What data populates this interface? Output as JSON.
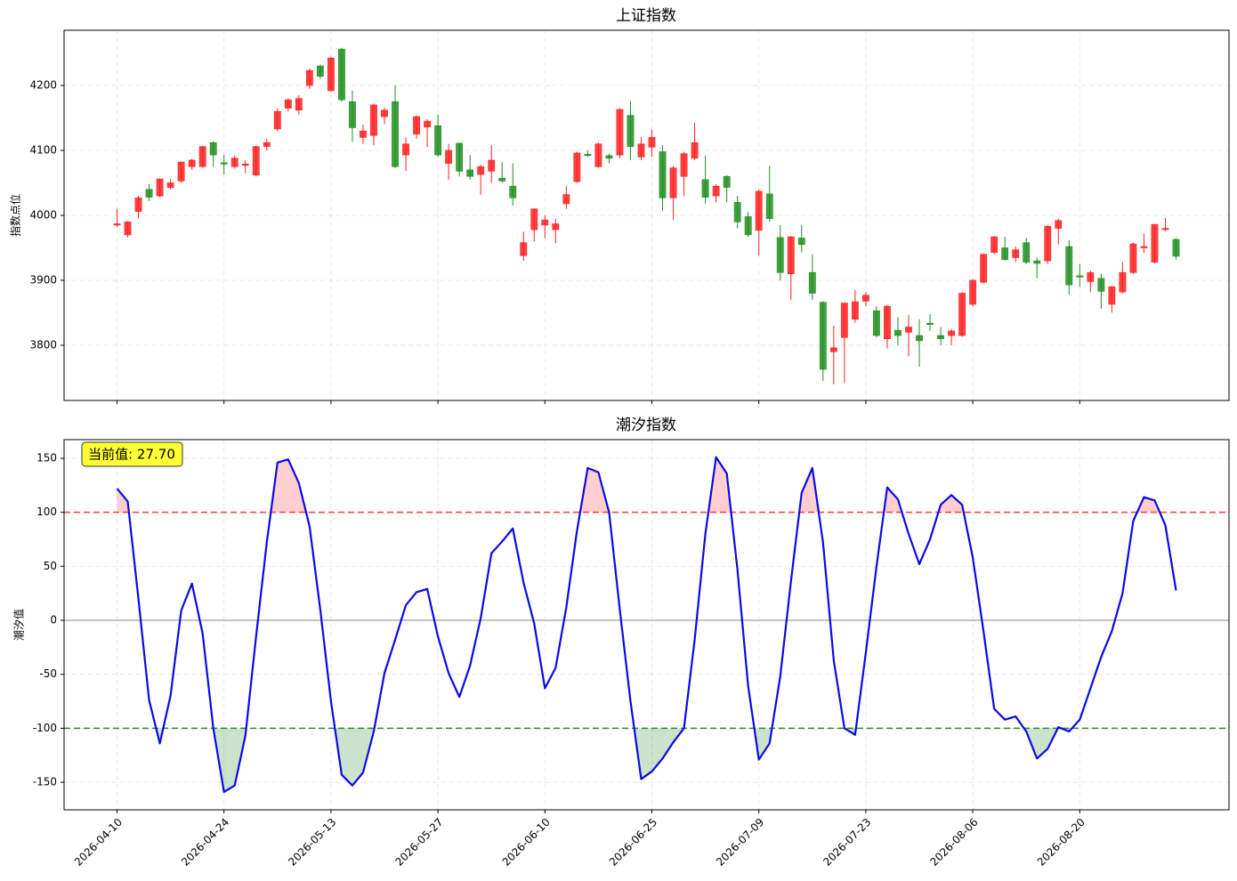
{
  "chart_data": [
    {
      "type": "candlestick",
      "title": "上证指数",
      "y_label": "指数点位",
      "up_color": "#ff2020",
      "down_color": "#1f8f1f",
      "xlim": [
        -4.95,
        103.95
      ],
      "xticks": [
        0,
        10,
        20,
        30,
        40,
        50,
        60,
        70,
        80,
        90
      ],
      "ylim": [
        3715,
        4285
      ],
      "yticks": [
        3800,
        3900,
        4000,
        4100,
        4200
      ],
      "grid": true,
      "open": [
        3985,
        3970,
        4006,
        4040,
        4030,
        4043,
        4053,
        4075,
        4075,
        4112,
        4081,
        4075,
        4077,
        4062,
        4106,
        4133,
        4165,
        4162,
        4200,
        4230,
        4192,
        4256,
        4175,
        4120,
        4123,
        4152,
        4175,
        4093,
        4125,
        4136,
        4138,
        4080,
        4111,
        4070,
        4063,
        4068,
        4057,
        4045,
        3938,
        3978,
        3985,
        3978,
        4018,
        4052,
        4094,
        4075,
        4092,
        4093,
        4154,
        4090,
        4105,
        4098,
        4027,
        4060,
        4088,
        4055,
        4030,
        4060,
        4020,
        3998,
        3977,
        4033,
        3966,
        3910,
        3965,
        3912,
        3866,
        3790,
        3812,
        3840,
        3868,
        3853,
        3810,
        3823,
        3820,
        3815,
        3834,
        3815,
        3815,
        3815,
        3863,
        3897,
        3943,
        3950,
        3935,
        3958,
        3930,
        3930,
        3980,
        3952,
        3907,
        3898,
        3903,
        3863,
        3882,
        3912,
        3950,
        3928,
        3978,
        3963
      ],
      "high": [
        4010,
        3991,
        4030,
        4048,
        4057,
        4056,
        4083,
        4087,
        4107,
        4114,
        4093,
        4092,
        4085,
        4107,
        4118,
        4165,
        4180,
        4185,
        4226,
        4232,
        4244,
        4258,
        4192,
        4140,
        4172,
        4166,
        4200,
        4120,
        4154,
        4148,
        4155,
        4110,
        4112,
        4093,
        4078,
        4108,
        4082,
        4080,
        3975,
        4010,
        4000,
        3995,
        4045,
        4098,
        4100,
        4112,
        4095,
        4165,
        4176,
        4120,
        4132,
        4108,
        4076,
        4098,
        4143,
        4092,
        4048,
        4062,
        4030,
        4005,
        4040,
        4076,
        3985,
        3968,
        3985,
        3940,
        3868,
        3830,
        3866,
        3885,
        3882,
        3860,
        3862,
        3843,
        3847,
        3840,
        3848,
        3828,
        3825,
        3882,
        3902,
        3941,
        3968,
        3967,
        3952,
        3965,
        3935,
        3985,
        3995,
        3962,
        3925,
        3915,
        3910,
        3892,
        3928,
        3958,
        3972,
        3987,
        3996,
        3965
      ],
      "low": [
        3982,
        3966,
        3995,
        4022,
        4028,
        4040,
        4050,
        4070,
        4073,
        4075,
        4063,
        4072,
        4065,
        4060,
        4100,
        4130,
        4160,
        4155,
        4195,
        4210,
        4190,
        4175,
        4113,
        4110,
        4108,
        4140,
        4073,
        4068,
        4118,
        4105,
        4090,
        4055,
        4060,
        4055,
        4032,
        4050,
        4050,
        4015,
        3930,
        3960,
        3965,
        3957,
        4010,
        4050,
        4090,
        4073,
        4080,
        4088,
        4085,
        4085,
        4090,
        4007,
        3993,
        4030,
        4085,
        4018,
        4020,
        4020,
        3980,
        3967,
        3938,
        3990,
        3900,
        3870,
        3943,
        3870,
        3745,
        3740,
        3742,
        3835,
        3860,
        3812,
        3795,
        3800,
        3783,
        3767,
        3822,
        3800,
        3800,
        3813,
        3860,
        3895,
        3940,
        3930,
        3928,
        3925,
        3903,
        3925,
        3955,
        3878,
        3890,
        3882,
        3856,
        3850,
        3880,
        3910,
        3942,
        3926,
        3975,
        3932
      ],
      "close": [
        3987,
        3990,
        4027,
        4028,
        4056,
        4050,
        4082,
        4085,
        4106,
        4093,
        4079,
        4088,
        4079,
        4106,
        4112,
        4160,
        4178,
        4180,
        4223,
        4214,
        4242,
        4178,
        4135,
        4130,
        4170,
        4162,
        4075,
        4110,
        4152,
        4145,
        4093,
        4100,
        4068,
        4060,
        4075,
        4085,
        4053,
        4027,
        3958,
        4010,
        3993,
        3987,
        4032,
        4096,
        4092,
        4110,
        4088,
        4163,
        4106,
        4110,
        4120,
        4027,
        4073,
        4095,
        4112,
        4028,
        4045,
        4043,
        3990,
        3970,
        4037,
        3995,
        3912,
        3967,
        3955,
        3880,
        3763,
        3796,
        3865,
        3867,
        3877,
        3815,
        3860,
        3815,
        3828,
        3807,
        3832,
        3810,
        3822,
        3880,
        3900,
        3940,
        3967,
        3932,
        3947,
        3928,
        3926,
        3983,
        3992,
        3893,
        3905,
        3912,
        3883,
        3890,
        3912,
        3956,
        3952,
        3986,
        3980,
        3937
      ]
    },
    {
      "type": "line",
      "title": "潮汐指数",
      "y_label": "潮汐值",
      "annotation": "当前值: 27.70",
      "categories": [
        "2026-04-10",
        null,
        null,
        null,
        null,
        null,
        null,
        null,
        null,
        null,
        "2026-04-24",
        null,
        null,
        null,
        null,
        null,
        null,
        null,
        null,
        null,
        "2026-05-13",
        null,
        null,
        null,
        null,
        null,
        null,
        null,
        null,
        null,
        "2026-05-27",
        null,
        null,
        null,
        null,
        null,
        null,
        null,
        null,
        null,
        "2026-06-10",
        null,
        null,
        null,
        null,
        null,
        null,
        null,
        null,
        null,
        "2026-06-25",
        null,
        null,
        null,
        null,
        null,
        null,
        null,
        null,
        null,
        "2026-07-09",
        null,
        null,
        null,
        null,
        null,
        null,
        null,
        null,
        null,
        "2026-07-23",
        null,
        null,
        null,
        null,
        null,
        null,
        null,
        null,
        null,
        "2026-08-06",
        null,
        null,
        null,
        null,
        null,
        null,
        null,
        null,
        null,
        "2026-08-20",
        null,
        null,
        null,
        null,
        null,
        null,
        null,
        null,
        null
      ],
      "xlim": [
        -4.95,
        103.95
      ],
      "xticks": [
        0,
        10,
        20,
        30,
        40,
        50,
        60,
        70,
        80,
        90
      ],
      "ylim": [
        -175.5,
        167.3
      ],
      "yticks": [
        -150,
        -100,
        -50,
        0,
        50,
        100,
        150
      ],
      "grid": true,
      "upper_threshold": 100,
      "upper_color": "#ff3b3b",
      "lower_threshold": -100,
      "lower_color": "#2e8b2e",
      "zero_line": 0,
      "series": [
        {
          "name": "潮汐指数",
          "color": "#0a0ae6",
          "values": [
            122,
            110,
            20,
            -74,
            -114,
            -70,
            9,
            34,
            -12,
            -100,
            -159,
            -153,
            -107,
            -15,
            72,
            146,
            149,
            127,
            87,
            10,
            -75,
            -143,
            -153,
            -141,
            -103,
            -49,
            -18,
            14,
            26,
            29,
            -15,
            -49,
            -71,
            -42,
            2,
            62,
            73,
            85,
            35,
            -3,
            -63,
            -44,
            12,
            83,
            141,
            137,
            100,
            10,
            -75,
            -147,
            -140,
            -128,
            -113,
            -100,
            -18,
            80,
            151,
            136,
            47,
            -61,
            -129,
            -114,
            -52,
            36,
            118,
            141,
            72,
            -37,
            -100,
            -106,
            -30,
            50,
            123,
            112,
            80,
            52,
            75,
            107,
            116,
            107,
            58,
            -10,
            -82,
            -92,
            -89,
            -103,
            -128,
            -119,
            -99,
            -103,
            -92,
            -63,
            -34,
            -10,
            25,
            92,
            114,
            111,
            88,
            27.7
          ]
        }
      ]
    }
  ]
}
